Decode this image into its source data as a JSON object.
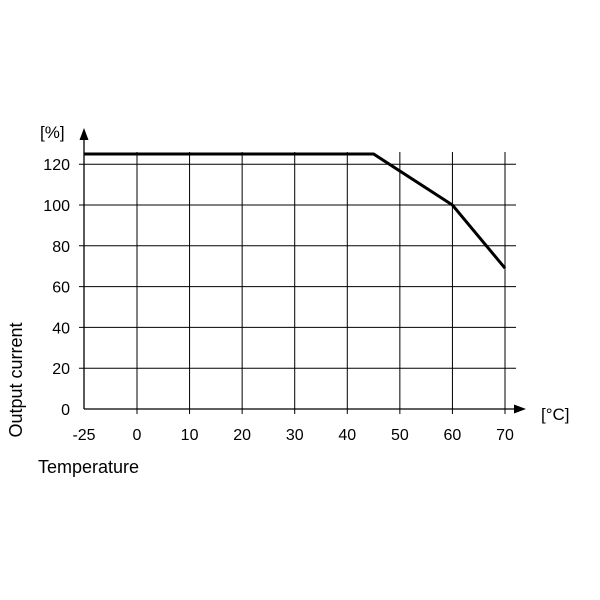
{
  "chart_data": {
    "type": "line",
    "title": "",
    "xlabel": "Temperature",
    "ylabel": "Output current",
    "x_unit": "[°C]",
    "y_unit": "[%]",
    "x_ticks": [
      "-25",
      "0",
      "10",
      "20",
      "30",
      "40",
      "50",
      "60",
      "70"
    ],
    "y_ticks": [
      "0",
      "20",
      "40",
      "60",
      "80",
      "100",
      "120"
    ],
    "xlim": [
      -25,
      70
    ],
    "ylim": [
      0,
      125
    ],
    "grid": true,
    "series": [
      {
        "x": [
          -25,
          45,
          60,
          70
        ],
        "y": [
          125,
          125,
          100,
          69
        ]
      }
    ],
    "line_color": "#000000",
    "grid_color": "#000000"
  }
}
